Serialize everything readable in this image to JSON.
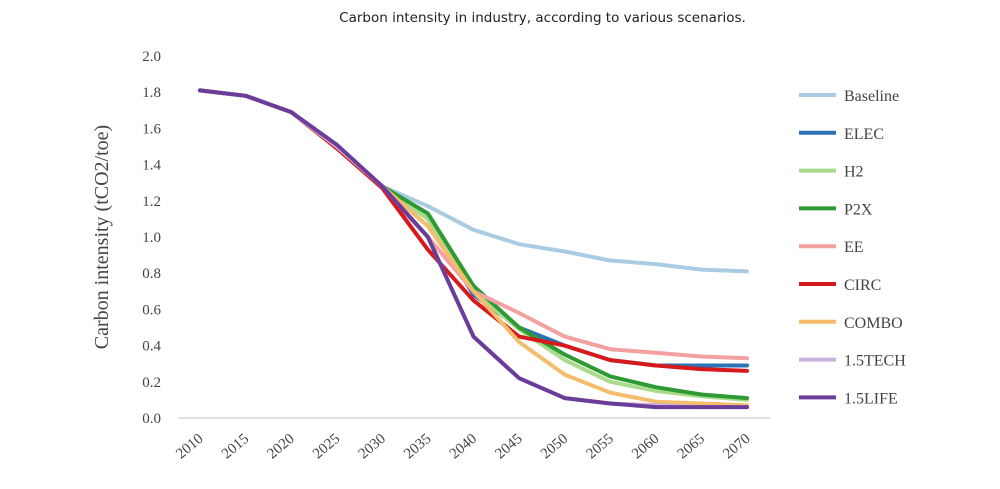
{
  "chart_data": {
    "type": "line",
    "title": "Carbon intensity in industry, according to various scenarios.",
    "xlabel": "",
    "ylabel": "Carbon intensity  (tCO2/toe)",
    "x": [
      2010,
      2015,
      2020,
      2025,
      2030,
      2035,
      2040,
      2045,
      2050,
      2055,
      2060,
      2065,
      2070
    ],
    "x_tick_labels": [
      "2010",
      "2015",
      "2020",
      "2025",
      "2030",
      "2035",
      "2040",
      "2045",
      "2050",
      "2055",
      "2060",
      "2065",
      "2070"
    ],
    "ylim": [
      0,
      2.0
    ],
    "y_ticks": [
      0,
      0.2,
      0.4,
      0.6,
      0.8,
      1.0,
      1.2,
      1.4,
      1.6,
      1.8,
      2.0
    ],
    "y_tick_labels": [
      "0.0",
      "0.2",
      "0.4",
      "0.6",
      "0.8",
      "1.0",
      "1.2",
      "1.4",
      "1.6",
      "1.8",
      "2.0"
    ],
    "grid": false,
    "legend_position": "right",
    "series": [
      {
        "name": "Baseline",
        "color": "#a9cce3",
        "values": [
          1.81,
          1.78,
          1.69,
          1.5,
          1.28,
          1.17,
          1.04,
          0.96,
          0.92,
          0.87,
          0.85,
          0.82,
          0.81
        ]
      },
      {
        "name": "ELEC",
        "color": "#2c73b5",
        "values": [
          1.81,
          1.78,
          1.69,
          1.5,
          1.28,
          1.1,
          0.68,
          0.5,
          0.4,
          0.32,
          0.29,
          0.29,
          0.29
        ]
      },
      {
        "name": "H2",
        "color": "#a8dc8c",
        "values": [
          1.81,
          1.78,
          1.69,
          1.5,
          1.28,
          1.1,
          0.7,
          0.49,
          0.32,
          0.2,
          0.15,
          0.12,
          0.1
        ]
      },
      {
        "name": "P2X",
        "color": "#2e9a34",
        "values": [
          1.81,
          1.78,
          1.69,
          1.5,
          1.28,
          1.13,
          0.73,
          0.5,
          0.35,
          0.23,
          0.17,
          0.13,
          0.11
        ]
      },
      {
        "name": "EE",
        "color": "#f2a0a0",
        "values": [
          1.81,
          1.78,
          1.69,
          1.49,
          1.27,
          1.0,
          0.7,
          0.58,
          0.45,
          0.38,
          0.36,
          0.34,
          0.33
        ]
      },
      {
        "name": "CIRC",
        "color": "#d7191c",
        "values": [
          1.81,
          1.78,
          1.69,
          1.49,
          1.27,
          0.93,
          0.65,
          0.45,
          0.4,
          0.32,
          0.29,
          0.27,
          0.26
        ]
      },
      {
        "name": "COMBO",
        "color": "#f5bd6b",
        "values": [
          1.81,
          1.78,
          1.69,
          1.5,
          1.28,
          1.06,
          0.7,
          0.42,
          0.24,
          0.14,
          0.09,
          0.08,
          0.07
        ]
      },
      {
        "name": "1.5TECH",
        "color": "#c9b3dc",
        "values": [
          1.81,
          1.78,
          1.69,
          1.5,
          1.28,
          1.0,
          0.45,
          0.22,
          0.11,
          0.08,
          0.07,
          0.06,
          0.06
        ]
      },
      {
        "name": "1.5LIFE",
        "color": "#6a3d9a",
        "values": [
          1.81,
          1.78,
          1.69,
          1.51,
          1.28,
          1.0,
          0.45,
          0.22,
          0.11,
          0.08,
          0.06,
          0.06,
          0.06
        ]
      }
    ]
  }
}
